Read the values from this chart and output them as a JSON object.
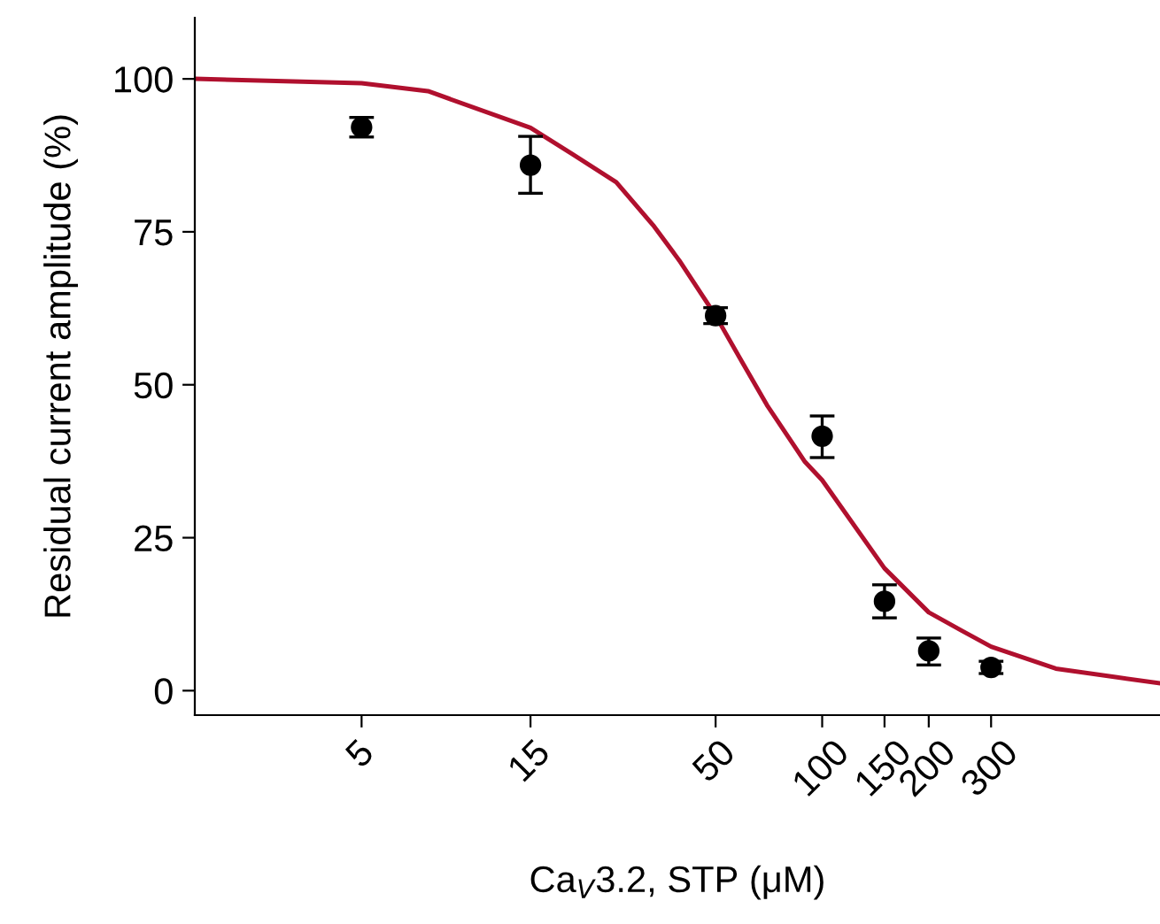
{
  "chart_data": {
    "type": "scatter",
    "xlabel": "Ca$_{V}$3.2, STP (μM)",
    "ylabel": "Residual current amplitude (%)",
    "log": "x",
    "xlim": [
      1.69,
      900
    ],
    "ylim": [
      -4,
      110
    ],
    "xticks": [
      5,
      15,
      50,
      100,
      150,
      200,
      300
    ],
    "yticks": [
      0,
      25,
      50,
      75,
      100
    ],
    "grid": false,
    "series": [
      {
        "type": "line",
        "color": "#b0102e",
        "x": [
          1.69,
          5,
          7.7,
          15,
          19.7,
          26.2,
          33.5,
          39.5,
          50,
          59.3,
          69.8,
          89.4,
          100,
          150,
          200,
          248,
          300,
          457,
          900
        ],
        "values": [
          100,
          99.3,
          98.0,
          92.0,
          87.7,
          83.1,
          75.9,
          70.3,
          61.3,
          53.8,
          46.7,
          37.4,
          34.4,
          20,
          12.8,
          9.8,
          7.2,
          3.6,
          1.2
        ],
        "marker": "none",
        "line_style": "solid"
      },
      {
        "color": "#000000",
        "x": [
          5,
          15,
          50,
          100,
          150,
          200,
          300
        ],
        "values": [
          92.1,
          85.9,
          61.3,
          41.6,
          14.6,
          6.5,
          3.8
        ],
        "errors": [
          1.6,
          [
            81.3,
            90.6
          ],
          1.3,
          [
            38.1,
            44.9
          ],
          [
            11.9,
            17.3
          ],
          [
            4.2,
            8.6
          ],
          1
        ],
        "marker": "circle"
      }
    ]
  }
}
